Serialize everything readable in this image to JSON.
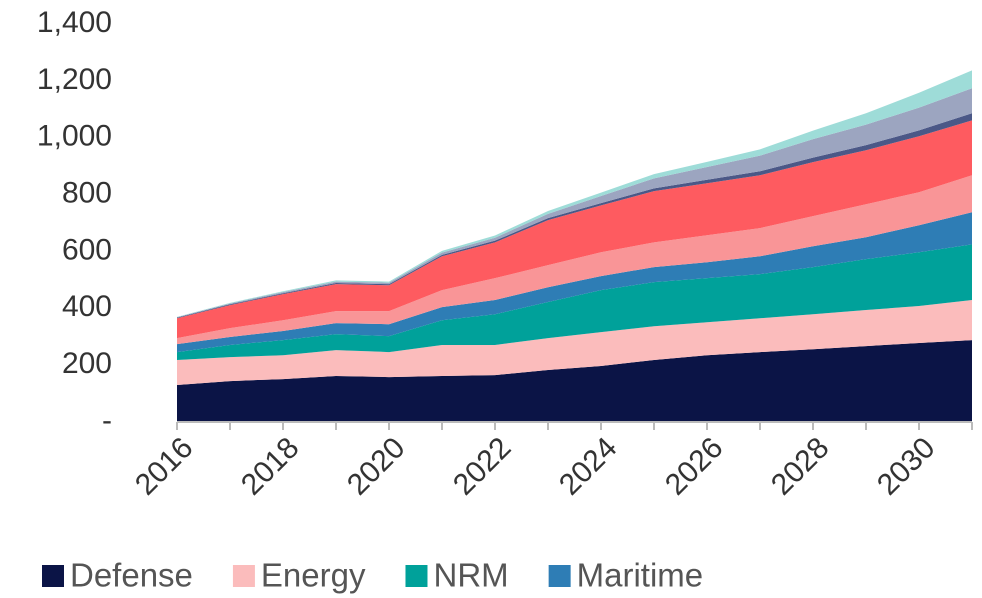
{
  "chart_data": {
    "type": "stacked-area",
    "x": [
      2016,
      2017,
      2018,
      2019,
      2020,
      2021,
      2022,
      2023,
      2024,
      2025,
      2026,
      2027,
      2028,
      2029,
      2030,
      2031
    ],
    "series": [
      {
        "name": "Defense",
        "color": "#0b1446",
        "values": [
          130,
          144,
          151,
          162,
          158,
          162,
          165,
          183,
          197,
          218,
          235,
          246,
          256,
          267,
          278,
          288
        ]
      },
      {
        "name": "Energy",
        "color": "#fbbcbc",
        "values": [
          88,
          84,
          84,
          91,
          88,
          109,
          106,
          112,
          119,
          119,
          116,
          119,
          123,
          127,
          130,
          141
        ]
      },
      {
        "name": "NRM",
        "color": "#00a19a",
        "values": [
          28,
          43,
          53,
          56,
          56,
          87,
          108,
          127,
          148,
          155,
          155,
          155,
          166,
          179,
          189,
          196
        ]
      },
      {
        "name": "Maritime",
        "color": "#2e7db5",
        "values": [
          28,
          28,
          32,
          39,
          42,
          46,
          50,
          52,
          49,
          53,
          56,
          63,
          73,
          77,
          95,
          113
        ]
      },
      {
        "color": "#f99597",
        "values": [
          21,
          31,
          38,
          42,
          46,
          60,
          77,
          78,
          84,
          87,
          95,
          99,
          106,
          116,
          116,
          130
        ]
      },
      {
        "color": "#fe5b60",
        "values": [
          70,
          81,
          92,
          95,
          91,
          119,
          126,
          158,
          165,
          180,
          183,
          186,
          190,
          190,
          197,
          193
        ]
      },
      {
        "color": "#4b5887",
        "values": [
          2,
          3,
          3,
          4,
          4,
          5,
          6,
          7,
          8,
          10,
          12,
          14,
          16,
          18,
          21,
          25
        ]
      },
      {
        "color": "#9ca5c0",
        "values": [
          2,
          3,
          4,
          5,
          5,
          8,
          10,
          15,
          25,
          35,
          45,
          55,
          65,
          72,
          80,
          88
        ]
      },
      {
        "color": "#9edcd8",
        "values": [
          1,
          2,
          3,
          4,
          4,
          6,
          8,
          10,
          12,
          15,
          18,
          22,
          30,
          40,
          52,
          63
        ]
      }
    ],
    "xlim": [
      2016,
      2031
    ],
    "xticks": [
      2016,
      2018,
      2020,
      2022,
      2024,
      2026,
      2028,
      2030
    ],
    "ylim": [
      0,
      1400
    ],
    "yticks": [
      {
        "value": 0,
        "label": "-"
      },
      200,
      400,
      600,
      800,
      {
        "value": 1000,
        "label": "1,000"
      },
      {
        "value": 1200,
        "label": "1,200"
      },
      {
        "value": 1400,
        "label": "1,400"
      }
    ],
    "legend": "bottom"
  }
}
